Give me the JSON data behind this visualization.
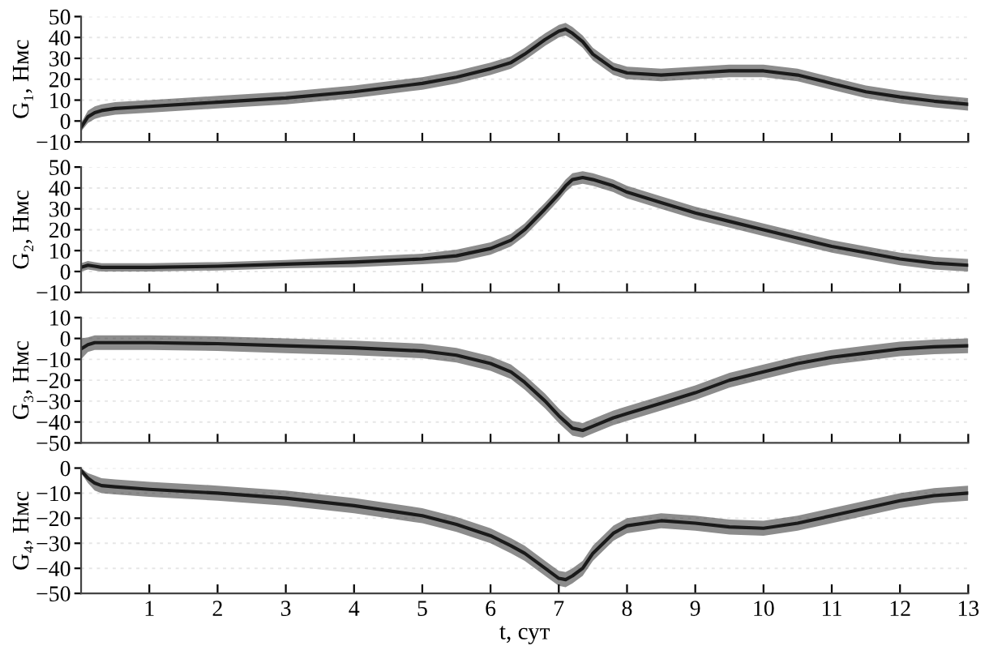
{
  "chart_data": [
    {
      "type": "line",
      "ylabel": "G₁, Нмс",
      "x": [
        0,
        0.1,
        0.2,
        0.3,
        0.5,
        1,
        2,
        3,
        4,
        5,
        5.5,
        6,
        6.3,
        6.5,
        6.8,
        7,
        7.1,
        7.2,
        7.35,
        7.5,
        7.8,
        8,
        8.5,
        9,
        9.5,
        10,
        10.5,
        11,
        11.5,
        12,
        12.5,
        13
      ],
      "series": [
        {
          "color": "#1a1a1a",
          "values": [
            -3,
            2,
            4,
            5,
            6,
            7,
            9,
            11,
            14,
            18,
            21,
            25,
            28,
            32,
            39,
            43,
            44,
            42,
            38,
            32,
            25,
            23,
            22,
            23,
            24,
            24,
            22,
            18,
            14,
            11.5,
            9.5,
            8
          ],
          "lower": [
            -5,
            -1,
            1,
            2,
            3,
            4,
            6,
            8,
            11,
            15,
            18,
            22,
            25,
            29,
            36,
            40,
            41,
            39,
            35,
            29,
            22,
            20,
            19,
            20,
            21,
            21,
            19,
            15,
            11,
            8.5,
            6.5,
            5
          ],
          "upper": [
            -1,
            5,
            7,
            8,
            9,
            10,
            12,
            14,
            17,
            21,
            24,
            28,
            31,
            35,
            42,
            46,
            47,
            45,
            41,
            35,
            28,
            26,
            25,
            26,
            27,
            27,
            25,
            21,
            17,
            14.5,
            12.5,
            11
          ]
        }
      ],
      "xlim": [
        0,
        13
      ],
      "xticks": [
        1,
        2,
        3,
        4,
        5,
        6,
        7,
        8,
        9,
        10,
        11,
        12,
        13
      ],
      "ylim": [
        -10,
        50
      ],
      "yticks": [
        {
          "value": -10,
          "label": "−10"
        },
        0,
        10,
        20,
        30,
        40,
        50
      ],
      "tick_labels": "y",
      "grid": "y"
    },
    {
      "type": "line",
      "ylabel": "G₂, Нмс",
      "x": [
        0,
        0.1,
        0.2,
        0.3,
        0.5,
        1,
        2,
        3,
        4,
        5,
        5.5,
        6,
        6.3,
        6.5,
        6.8,
        7,
        7.1,
        7.2,
        7.35,
        7.5,
        7.8,
        8,
        8.5,
        9,
        9.5,
        10,
        10.5,
        11,
        11.5,
        12,
        12.5,
        13
      ],
      "series": [
        {
          "color": "#1a1a1a",
          "values": [
            2,
            3,
            2.5,
            2,
            2,
            2,
            2.5,
            3.5,
            4.5,
            6,
            7.5,
            11,
            15,
            20,
            30,
            37,
            41,
            44,
            45,
            44,
            41,
            38,
            33,
            28,
            24,
            20,
            16,
            12,
            9,
            6,
            4,
            3
          ],
          "lower": [
            0,
            1,
            0.5,
            0,
            0,
            0,
            0.5,
            1.5,
            2,
            3.5,
            4.5,
            8,
            12,
            17,
            27,
            34,
            38,
            41,
            42,
            41,
            38,
            35,
            30,
            25,
            21,
            17,
            13,
            9,
            6,
            3,
            1,
            0
          ],
          "upper": [
            4,
            5,
            4.5,
            4,
            4,
            4,
            4.5,
            5.5,
            7,
            8.5,
            10.5,
            14,
            18,
            23,
            33,
            40,
            44,
            47,
            48,
            47,
            44,
            41,
            36,
            31,
            27,
            23,
            19,
            15,
            12,
            9,
            7,
            6
          ]
        }
      ],
      "xlim": [
        0,
        13
      ],
      "xticks": [
        1,
        2,
        3,
        4,
        5,
        6,
        7,
        8,
        9,
        10,
        11,
        12,
        13
      ],
      "ylim": [
        -10,
        50
      ],
      "yticks": [
        {
          "value": -10,
          "label": "−10"
        },
        0,
        10,
        20,
        30,
        40,
        50
      ],
      "tick_labels": "y",
      "grid": "y"
    },
    {
      "type": "line",
      "ylabel": "G₃, Нмс",
      "x": [
        0,
        0.1,
        0.2,
        0.3,
        0.5,
        1,
        2,
        3,
        4,
        5,
        5.5,
        6,
        6.3,
        6.5,
        6.8,
        7,
        7.1,
        7.2,
        7.35,
        7.5,
        7.8,
        8,
        8.5,
        9,
        9.5,
        10,
        10.5,
        11,
        11.5,
        12,
        12.5,
        13
      ],
      "series": [
        {
          "color": "#1a1a1a",
          "values": [
            -5,
            -3,
            -2,
            -2,
            -2,
            -2,
            -2.5,
            -3.5,
            -4.5,
            -6,
            -8,
            -12,
            -16,
            -21,
            -30,
            -37,
            -40,
            -43,
            -44,
            -42,
            -38,
            -36,
            -31,
            -26,
            -20,
            -16,
            -12,
            -9,
            -7,
            -5,
            -4,
            -3.5
          ],
          "lower": [
            -10,
            -6.5,
            -5.5,
            -5.5,
            -5.5,
            -5.5,
            -6,
            -7,
            -8,
            -9.5,
            -11.5,
            -15.5,
            -19.5,
            -24.5,
            -33.5,
            -40.5,
            -43.5,
            -46.5,
            -47.5,
            -45.5,
            -41.5,
            -39.5,
            -34.5,
            -29.5,
            -23.5,
            -19.5,
            -15.5,
            -12.5,
            -10.5,
            -8.5,
            -7.5,
            -7
          ],
          "upper": [
            0,
            0.5,
            1.5,
            1.5,
            1.5,
            1.5,
            1,
            0,
            -1,
            -2.5,
            -4.5,
            -8.5,
            -12.5,
            -17.5,
            -26.5,
            -33.5,
            -36.5,
            -39.5,
            -40.5,
            -38.5,
            -34.5,
            -32.5,
            -27.5,
            -22.5,
            -16.5,
            -12.5,
            -8.5,
            -5.5,
            -3.5,
            -1.5,
            -0.5,
            0
          ]
        }
      ],
      "xlim": [
        0,
        13
      ],
      "xticks": [
        1,
        2,
        3,
        4,
        5,
        6,
        7,
        8,
        9,
        10,
        11,
        12,
        13
      ],
      "ylim": [
        -50,
        10
      ],
      "yticks": [
        {
          "value": -50,
          "label": "−50"
        },
        {
          "value": -40,
          "label": "−40"
        },
        {
          "value": -30,
          "label": "−30"
        },
        {
          "value": -20,
          "label": "−20"
        },
        {
          "value": -10,
          "label": "−10"
        },
        0,
        10
      ],
      "tick_labels": "y",
      "grid": "y"
    },
    {
      "type": "line",
      "ylabel": "G₄, Нмс",
      "xlabel": "t, сут",
      "x": [
        0,
        0.1,
        0.2,
        0.3,
        0.5,
        1,
        2,
        3,
        4,
        5,
        5.5,
        6,
        6.3,
        6.5,
        6.8,
        7,
        7.1,
        7.2,
        7.35,
        7.5,
        7.8,
        8,
        8.5,
        9,
        9.5,
        10,
        10.5,
        11,
        11.5,
        12,
        12.5,
        13
      ],
      "series": [
        {
          "color": "#1a1a1a",
          "values": [
            -1,
            -4,
            -6,
            -7,
            -7.5,
            -8.5,
            -10,
            -12,
            -15,
            -19,
            -22.5,
            -27,
            -31,
            -34,
            -40,
            -44,
            -44.5,
            -43,
            -40,
            -34,
            -26,
            -23,
            -21,
            -22,
            -23.5,
            -24,
            -22,
            -19,
            -16,
            -13,
            -11,
            -10
          ],
          "lower": [
            -2,
            -6,
            -9,
            -10,
            -10.5,
            -11.5,
            -13,
            -15,
            -18,
            -22,
            -25.5,
            -30,
            -34,
            -37,
            -43,
            -47,
            -47.5,
            -46,
            -43,
            -37,
            -29,
            -26,
            -24,
            -25,
            -26.5,
            -27,
            -25,
            -22,
            -19,
            -16,
            -14,
            -13
          ],
          "upper": [
            0,
            -2,
            -3,
            -4,
            -4.5,
            -5.5,
            -7,
            -9,
            -12,
            -16,
            -19.5,
            -24,
            -28,
            -31,
            -37,
            -41,
            -41.5,
            -40,
            -37,
            -31,
            -23,
            -20,
            -18,
            -19,
            -20.5,
            -21,
            -19,
            -16,
            -13,
            -10,
            -8,
            -7
          ]
        }
      ],
      "xlim": [
        0,
        13
      ],
      "xticks": [
        1,
        2,
        3,
        4,
        5,
        6,
        7,
        8,
        9,
        10,
        11,
        12,
        13
      ],
      "ylim": [
        -50,
        0
      ],
      "yticks": [
        {
          "value": -50,
          "label": "−50"
        },
        {
          "value": -40,
          "label": "−40"
        },
        {
          "value": -30,
          "label": "−30"
        },
        {
          "value": -20,
          "label": "−20"
        },
        {
          "value": -10,
          "label": "−10"
        },
        0
      ],
      "grid": "y"
    }
  ]
}
